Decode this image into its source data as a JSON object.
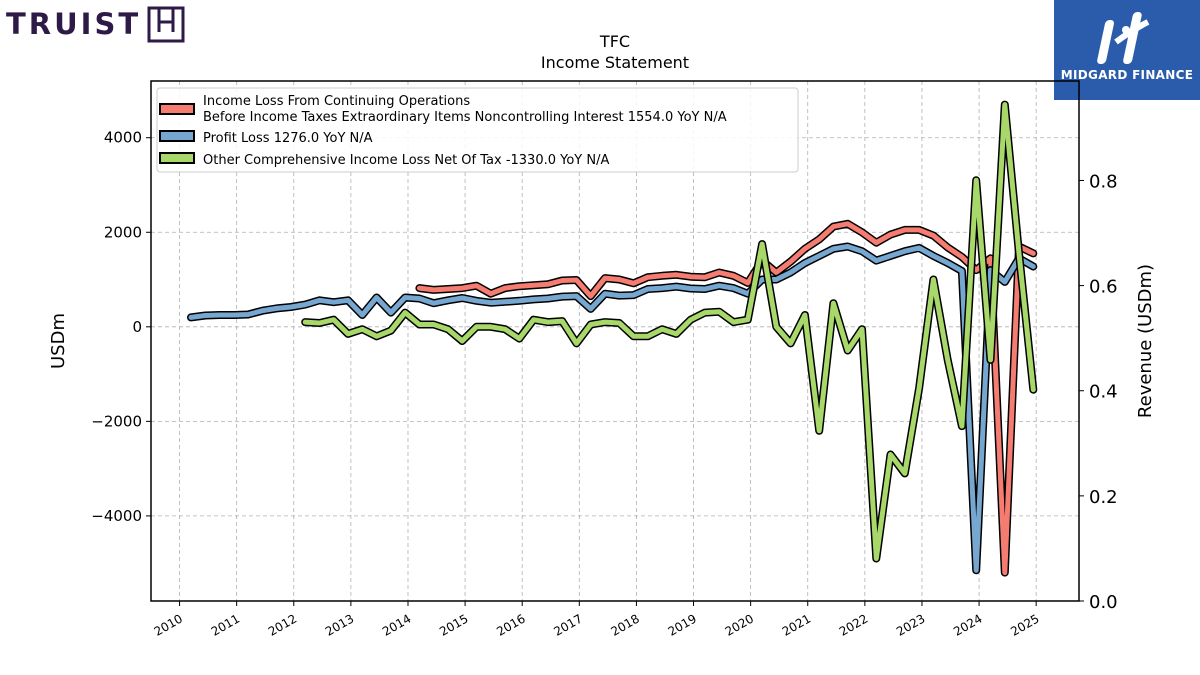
{
  "logos": {
    "left_text": "TRUIST",
    "right_text": "MIDGARD FINANCE"
  },
  "chart_data": {
    "type": "line",
    "title": "TFC",
    "subtitle": "Income Statement",
    "ylabel": "USDm",
    "y2label": "Revenue (USDm)",
    "ylim": [
      -5800,
      5200
    ],
    "y2lim": [
      0.0,
      0.9892
    ],
    "xlim": [
      2009.5,
      2025.75
    ],
    "yticks": [
      4000,
      2000,
      0,
      -2000,
      -4000
    ],
    "ytick_labels": [
      "4000",
      "2000",
      "0",
      "−2000",
      "−4000"
    ],
    "y2ticks": [
      0.0,
      0.2,
      0.4,
      0.6,
      0.8
    ],
    "y2tick_labels": [
      "0.0",
      "0.2",
      "0.4",
      "0.6",
      "0.8"
    ],
    "xticks": [
      "2010",
      "2011",
      "2012",
      "2013",
      "2014",
      "2015",
      "2016",
      "2017",
      "2018",
      "2019",
      "2020",
      "2021",
      "2022",
      "2023",
      "2024",
      "2025"
    ],
    "grid": true,
    "legend_position": "top-left",
    "series": [
      {
        "name": "Income Loss From Continuing Operations\nBefore Income Taxes Extraordinary Items Noncontrolling Interest  1554.0 YoY N/A",
        "color": "#f47c70",
        "x": [
          2014.2,
          2014.45,
          2014.7,
          2014.95,
          2015.2,
          2015.45,
          2015.7,
          2015.95,
          2016.2,
          2016.45,
          2016.7,
          2016.95,
          2017.2,
          2017.45,
          2017.7,
          2017.95,
          2018.2,
          2018.45,
          2018.7,
          2018.95,
          2019.2,
          2019.45,
          2019.7,
          2019.95,
          2020.2,
          2020.45,
          2020.7,
          2020.95,
          2021.2,
          2021.45,
          2021.7,
          2021.95,
          2022.2,
          2022.45,
          2022.7,
          2022.95,
          2023.2,
          2023.45,
          2023.7,
          2023.95,
          2024.2,
          2024.45,
          2024.7,
          2024.95
        ],
        "y": [
          820,
          780,
          800,
          820,
          870,
          700,
          820,
          860,
          880,
          900,
          980,
          990,
          650,
          1030,
          1000,
          920,
          1050,
          1080,
          1100,
          1060,
          1050,
          1150,
          1080,
          930,
          1400,
          1150,
          1380,
          1650,
          1850,
          2120,
          2180,
          2000,
          1780,
          1950,
          2050,
          2050,
          1930,
          1680,
          1480,
          1200,
          1450,
          -5200,
          1700,
          1554
        ]
      },
      {
        "name": "Profit Loss  1276.0 YoY N/A",
        "color": "#76a7d1",
        "x": [
          2010.2,
          2010.45,
          2010.7,
          2010.95,
          2011.2,
          2011.45,
          2011.7,
          2011.95,
          2012.2,
          2012.45,
          2012.7,
          2012.95,
          2013.2,
          2013.45,
          2013.7,
          2013.95,
          2014.2,
          2014.45,
          2014.7,
          2014.95,
          2015.2,
          2015.45,
          2015.7,
          2015.95,
          2016.2,
          2016.45,
          2016.7,
          2016.95,
          2017.2,
          2017.45,
          2017.7,
          2017.95,
          2018.2,
          2018.45,
          2018.7,
          2018.95,
          2019.2,
          2019.45,
          2019.7,
          2019.95,
          2020.2,
          2020.45,
          2020.7,
          2020.95,
          2021.2,
          2021.45,
          2021.7,
          2021.95,
          2022.2,
          2022.45,
          2022.7,
          2022.95,
          2023.2,
          2023.45,
          2023.7,
          2023.95,
          2024.2,
          2024.45,
          2024.7,
          2024.95
        ],
        "y": [
          200,
          240,
          250,
          250,
          260,
          340,
          390,
          420,
          470,
          560,
          520,
          560,
          250,
          620,
          300,
          620,
          600,
          500,
          560,
          610,
          550,
          510,
          530,
          550,
          580,
          600,
          640,
          650,
          380,
          700,
          660,
          670,
          800,
          820,
          850,
          810,
          800,
          870,
          820,
          700,
          1000,
          1000,
          1150,
          1350,
          1500,
          1650,
          1700,
          1600,
          1400,
          1500,
          1600,
          1670,
          1500,
          1350,
          1180,
          -5150,
          1200,
          950,
          1450,
          1276
        ]
      },
      {
        "name": "Other Comprehensive Income Loss Net Of Tax  -1330.0 YoY N/A",
        "color": "#a8d86a",
        "x": [
          2012.2,
          2012.45,
          2012.7,
          2012.95,
          2013.2,
          2013.45,
          2013.7,
          2013.95,
          2014.2,
          2014.45,
          2014.7,
          2014.95,
          2015.2,
          2015.45,
          2015.7,
          2015.95,
          2016.2,
          2016.45,
          2016.7,
          2016.95,
          2017.2,
          2017.45,
          2017.7,
          2017.95,
          2018.2,
          2018.45,
          2018.7,
          2018.95,
          2019.2,
          2019.45,
          2019.7,
          2019.95,
          2020.2,
          2020.45,
          2020.7,
          2020.95,
          2021.2,
          2021.45,
          2021.7,
          2021.95,
          2022.2,
          2022.45,
          2022.7,
          2022.95,
          2023.2,
          2023.45,
          2023.7,
          2023.95,
          2024.2,
          2024.45,
          2024.7,
          2024.95
        ],
        "y": [
          100,
          80,
          150,
          -150,
          -50,
          -200,
          -80,
          300,
          50,
          50,
          -50,
          -300,
          0,
          0,
          -50,
          -250,
          150,
          100,
          120,
          -350,
          50,
          100,
          80,
          -200,
          -200,
          -50,
          -150,
          150,
          300,
          320,
          100,
          150,
          1750,
          0,
          -350,
          250,
          -2200,
          500,
          -500,
          -50,
          -4900,
          -2700,
          -3100,
          -1300,
          1000,
          -700,
          -2100,
          3100,
          -700,
          4700,
          1550,
          -1330
        ]
      }
    ]
  }
}
